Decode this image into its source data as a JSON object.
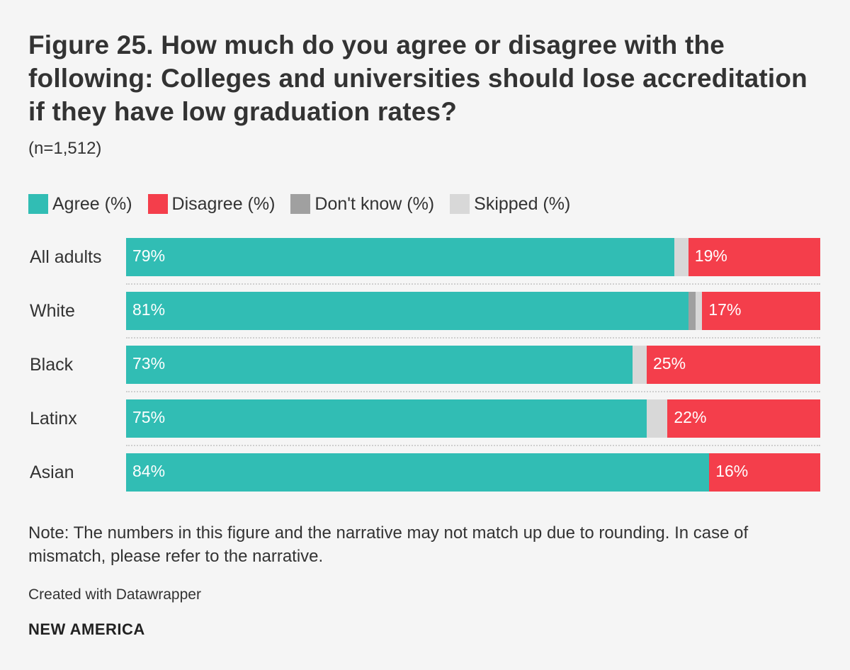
{
  "header": {
    "title": "Figure 25. How much do you agree or disagree with the following: Colleges and universities should lose accreditation if they have low graduation rates?",
    "subtitle": "(n=1,512)"
  },
  "legend": [
    {
      "label": "Agree (%)",
      "color": "#31bdb4"
    },
    {
      "label": "Disagree (%)",
      "color": "#f43e4b"
    },
    {
      "label": "Don't know (%)",
      "color": "#a0a0a0"
    },
    {
      "label": "Skipped (%)",
      "color": "#d8d8d8"
    }
  ],
  "chart_data": {
    "type": "bar",
    "orientation": "horizontal",
    "stacked": true,
    "title": "Figure 25. How much do you agree or disagree with the following: Colleges and universities should lose accreditation if they have low graduation rates?",
    "categories": [
      "All adults",
      "White",
      "Black",
      "Latinx",
      "Asian"
    ],
    "xlim": [
      0,
      100
    ],
    "series": [
      {
        "name": "Agree (%)",
        "color": "#31bdb4",
        "values": [
          79,
          81,
          73,
          75,
          84
        ],
        "labels": [
          "79%",
          "81%",
          "73%",
          "75%",
          "84%"
        ]
      },
      {
        "name": "Don't know (%)",
        "color": "#a0a0a0",
        "values": [
          0,
          1,
          0,
          0,
          0
        ],
        "labels": [
          "",
          "",
          "",
          "",
          ""
        ]
      },
      {
        "name": "Skipped (%)",
        "color": "#d8d8d8",
        "values": [
          2,
          1,
          2,
          3,
          0
        ],
        "labels": [
          "",
          "",
          "",
          "",
          ""
        ]
      },
      {
        "name": "Disagree (%)",
        "color": "#f43e4b",
        "values": [
          19,
          17,
          25,
          22,
          16
        ],
        "labels": [
          "19%",
          "17%",
          "25%",
          "22%",
          "16%"
        ]
      }
    ]
  },
  "footer": {
    "note": "Note: The numbers in this figure and the narrative may not match up due to rounding. In case of mismatch, please refer to the narrative.",
    "credit": "Created with Datawrapper",
    "brand": "NEW AMERICA"
  }
}
